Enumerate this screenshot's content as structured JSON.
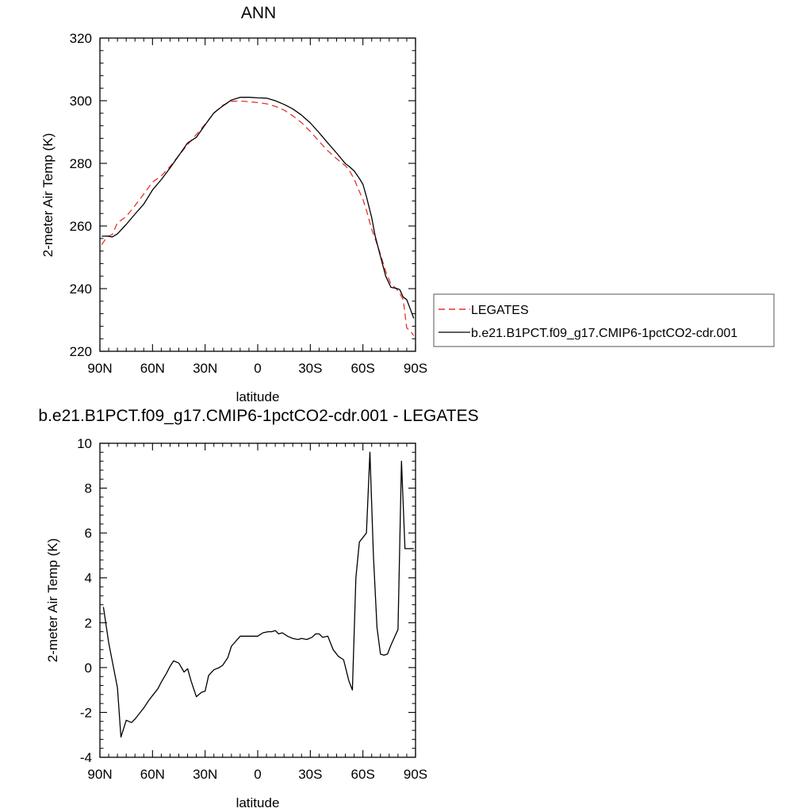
{
  "colors": {
    "legates": "#e8312f",
    "model": "#000000",
    "frame": "#000000",
    "legend_border": "#555555"
  },
  "chart_data": [
    {
      "type": "line",
      "title": "ANN",
      "xlabel": "latitude",
      "ylabel": "2-meter Air Temp (K)",
      "xlim": [
        90,
        -90
      ],
      "ylim": [
        220,
        320
      ],
      "x_ticks": [
        {
          "value": 90,
          "label": "90N"
        },
        {
          "value": 60,
          "label": "60N"
        },
        {
          "value": 30,
          "label": "30N"
        },
        {
          "value": 0,
          "label": "0"
        },
        {
          "value": -30,
          "label": "30S"
        },
        {
          "value": -60,
          "label": "60S"
        },
        {
          "value": -90,
          "label": "90S"
        }
      ],
      "y_ticks": [
        {
          "value": 220,
          "label": "220"
        },
        {
          "value": 240,
          "label": "240"
        },
        {
          "value": 260,
          "label": "260"
        },
        {
          "value": 280,
          "label": "280"
        },
        {
          "value": 300,
          "label": "300"
        },
        {
          "value": 320,
          "label": "320"
        }
      ],
      "legend": {
        "placement": "right"
      },
      "series": [
        {
          "name": "LEGATES",
          "style": "dashed",
          "color": "#e8312f",
          "x": [
            89,
            86,
            83,
            80,
            75,
            70,
            65,
            60,
            55,
            50,
            45,
            40,
            35,
            30,
            25,
            20,
            15,
            10,
            5,
            0,
            -5,
            -10,
            -15,
            -20,
            -25,
            -30,
            -35,
            -40,
            -45,
            -50,
            -52,
            -55,
            -58,
            -60,
            -62,
            -65,
            -67,
            -70,
            -73,
            -76,
            -79,
            -81,
            -83,
            -85,
            -87,
            -89
          ],
          "values": [
            254.0,
            256.5,
            257.3,
            261.0,
            263.0,
            266.5,
            270.2,
            274.0,
            276.0,
            279.0,
            282.5,
            286.0,
            289.2,
            292.5,
            296.0,
            298.5,
            299.8,
            299.9,
            299.7,
            299.4,
            299.0,
            298.2,
            297.0,
            295.2,
            293.0,
            290.2,
            287.0,
            284.0,
            281.5,
            279.2,
            278.0,
            275.0,
            271.0,
            268.5,
            265.0,
            259.0,
            256.0,
            251.0,
            245.5,
            241.5,
            240.0,
            238.5,
            236.5,
            227.5,
            226.5,
            225.0
          ]
        },
        {
          "name": "b.e21.B1PCT.f09_g17.CMIP6-1pctCO2-cdr.001",
          "style": "solid",
          "color": "#000000",
          "x": [
            89,
            86,
            83,
            80,
            75,
            70,
            65,
            60,
            55,
            50,
            45,
            40,
            35,
            30,
            25,
            20,
            15,
            10,
            5,
            0,
            -5,
            -10,
            -15,
            -20,
            -25,
            -30,
            -35,
            -40,
            -45,
            -50,
            -52,
            -55,
            -58,
            -60,
            -62,
            -65,
            -67,
            -70,
            -73,
            -76,
            -79,
            -81,
            -83,
            -85,
            -87,
            -89
          ],
          "values": [
            256.7,
            256.8,
            256.5,
            257.5,
            260.5,
            263.8,
            267.0,
            271.5,
            274.8,
            278.5,
            282.5,
            286.5,
            288.3,
            292.3,
            296.1,
            298.3,
            300.2,
            301.1,
            301.1,
            300.9,
            300.8,
            300.0,
            298.8,
            297.4,
            295.4,
            292.9,
            289.8,
            286.5,
            283.3,
            279.9,
            279.1,
            277.6,
            275.2,
            273.3,
            269.4,
            262.7,
            256.8,
            250.3,
            244.0,
            240.4,
            240.1,
            239.7,
            237.3,
            236.5,
            233.5,
            230.5
          ]
        }
      ]
    },
    {
      "type": "line",
      "title": "b.e21.B1PCT.f09_g17.CMIP6-1pctCO2-cdr.001 - LEGATES",
      "xlabel": "latitude",
      "ylabel": "2-meter Air Temp (K)",
      "xlim": [
        90,
        -90
      ],
      "ylim": [
        -4,
        10
      ],
      "x_ticks": [
        {
          "value": 90,
          "label": "90N"
        },
        {
          "value": 60,
          "label": "60N"
        },
        {
          "value": 30,
          "label": "30N"
        },
        {
          "value": 0,
          "label": "0"
        },
        {
          "value": -30,
          "label": "30S"
        },
        {
          "value": -60,
          "label": "60S"
        },
        {
          "value": -90,
          "label": "90S"
        }
      ],
      "y_ticks": [
        {
          "value": -4,
          "label": "-4"
        },
        {
          "value": -2,
          "label": "-2"
        },
        {
          "value": 0,
          "label": "0"
        },
        {
          "value": 2,
          "label": "2"
        },
        {
          "value": 4,
          "label": "4"
        },
        {
          "value": 6,
          "label": "6"
        },
        {
          "value": 8,
          "label": "8"
        },
        {
          "value": 10,
          "label": "10"
        }
      ],
      "series": [
        {
          "style": "solid",
          "color": "#000000",
          "x": [
            88,
            85,
            80,
            78,
            75,
            72,
            70,
            67,
            65,
            62,
            60,
            57,
            55,
            52,
            50,
            48,
            45,
            42,
            40,
            38,
            35,
            32,
            30,
            28,
            25,
            22,
            20,
            17,
            15,
            10,
            5,
            0,
            -3,
            -6,
            -8,
            -10,
            -12,
            -14,
            -17,
            -20,
            -23,
            -25,
            -28,
            -31,
            -33,
            -35,
            -37,
            -40,
            -43,
            -46,
            -49,
            -52,
            -54,
            -56,
            -58,
            -60,
            -62,
            -64,
            -66,
            -68,
            -70,
            -72,
            -74,
            -76,
            -80,
            -82,
            -84,
            -87,
            -89
          ],
          "values": [
            2.7,
            1.1,
            -0.9,
            -3.1,
            -2.35,
            -2.45,
            -2.3,
            -2.0,
            -1.8,
            -1.45,
            -1.25,
            -0.95,
            -0.65,
            -0.25,
            0.05,
            0.3,
            0.2,
            -0.2,
            -0.05,
            -0.6,
            -1.3,
            -1.1,
            -1.05,
            -0.35,
            -0.1,
            0.0,
            0.1,
            0.45,
            0.95,
            1.4,
            1.4,
            1.4,
            1.55,
            1.6,
            1.6,
            1.65,
            1.5,
            1.55,
            1.4,
            1.3,
            1.25,
            1.3,
            1.25,
            1.35,
            1.5,
            1.5,
            1.35,
            1.4,
            0.8,
            0.5,
            0.35,
            -0.6,
            -1.0,
            4.0,
            5.6,
            5.8,
            6.0,
            9.6,
            5.0,
            1.8,
            0.6,
            0.55,
            0.6,
            1.0,
            1.7,
            9.2,
            5.3,
            5.3,
            5.3
          ]
        }
      ]
    }
  ]
}
